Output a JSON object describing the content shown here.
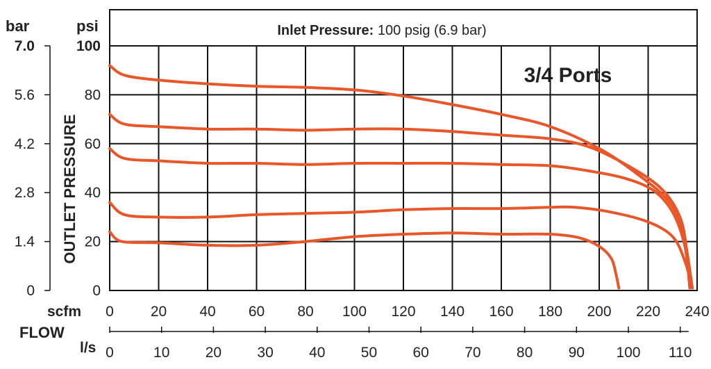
{
  "chart_data": {
    "type": "line",
    "title_bold": "Inlet Pressure:",
    "title_rest": " 100 psig (6.9 bar)",
    "annotation": "3/4 Ports",
    "ylabel": "OUTLET PRESSURE",
    "xlabel": "FLOW",
    "y_unit_psi": "psi",
    "y_unit_bar": "bar",
    "x_unit_scfm": "scfm",
    "x_unit_ls": "l/s",
    "psi_ticks": [
      "0",
      "20",
      "40",
      "60",
      "80",
      "100"
    ],
    "bar_ticks": [
      "0",
      "1.4",
      "2.8",
      "4.2",
      "5.6",
      "7.0"
    ],
    "scfm_ticks": [
      "0",
      "20",
      "40",
      "60",
      "80",
      "100",
      "120",
      "140",
      "160",
      "180",
      "200",
      "220",
      "240"
    ],
    "ls_ticks": [
      "0",
      "10",
      "20",
      "30",
      "40",
      "50",
      "60",
      "70",
      "80",
      "90",
      "100",
      "110"
    ],
    "xlim": [
      0,
      240
    ],
    "ylim": [
      0,
      100
    ],
    "grid": true,
    "line_color": "#e8572a",
    "series": [
      {
        "x": [
          0,
          6,
          20,
          40,
          60,
          80,
          100,
          120,
          140,
          160,
          180,
          200,
          215,
          228,
          234,
          237,
          238
        ],
        "y": [
          92,
          88,
          86,
          84.5,
          83.5,
          83,
          82,
          79.5,
          76,
          72,
          67,
          58,
          48,
          37,
          25,
          8,
          1
        ]
      },
      {
        "x": [
          0,
          6,
          20,
          40,
          60,
          80,
          100,
          120,
          140,
          160,
          180,
          195,
          210,
          225,
          233,
          236,
          238
        ],
        "y": [
          72,
          68,
          67,
          66,
          66,
          65.5,
          66,
          66,
          65,
          63.5,
          62,
          59,
          52,
          42,
          30,
          15,
          1
        ]
      },
      {
        "x": [
          0,
          6,
          20,
          40,
          60,
          80,
          100,
          120,
          140,
          160,
          180,
          195,
          210,
          222,
          230,
          235,
          237
        ],
        "y": [
          58,
          54,
          53,
          52,
          52,
          51.5,
          52,
          52,
          52,
          51.5,
          51,
          49,
          46,
          41,
          32,
          18,
          1
        ]
      },
      {
        "x": [
          0,
          6,
          20,
          40,
          60,
          80,
          100,
          120,
          140,
          160,
          180,
          190,
          205,
          220,
          230,
          235,
          238
        ],
        "y": [
          36,
          31,
          30,
          30,
          31,
          31.5,
          32,
          33,
          33.5,
          33.5,
          34,
          34,
          32,
          28,
          22,
          12,
          1
        ]
      },
      {
        "x": [
          0,
          5,
          20,
          40,
          60,
          80,
          100,
          120,
          140,
          160,
          180,
          192,
          200,
          205,
          207,
          208
        ],
        "y": [
          24,
          20,
          19.5,
          18.5,
          18.5,
          20,
          22,
          23,
          23.5,
          23,
          23,
          21.5,
          18,
          13,
          6,
          1
        ]
      }
    ]
  }
}
